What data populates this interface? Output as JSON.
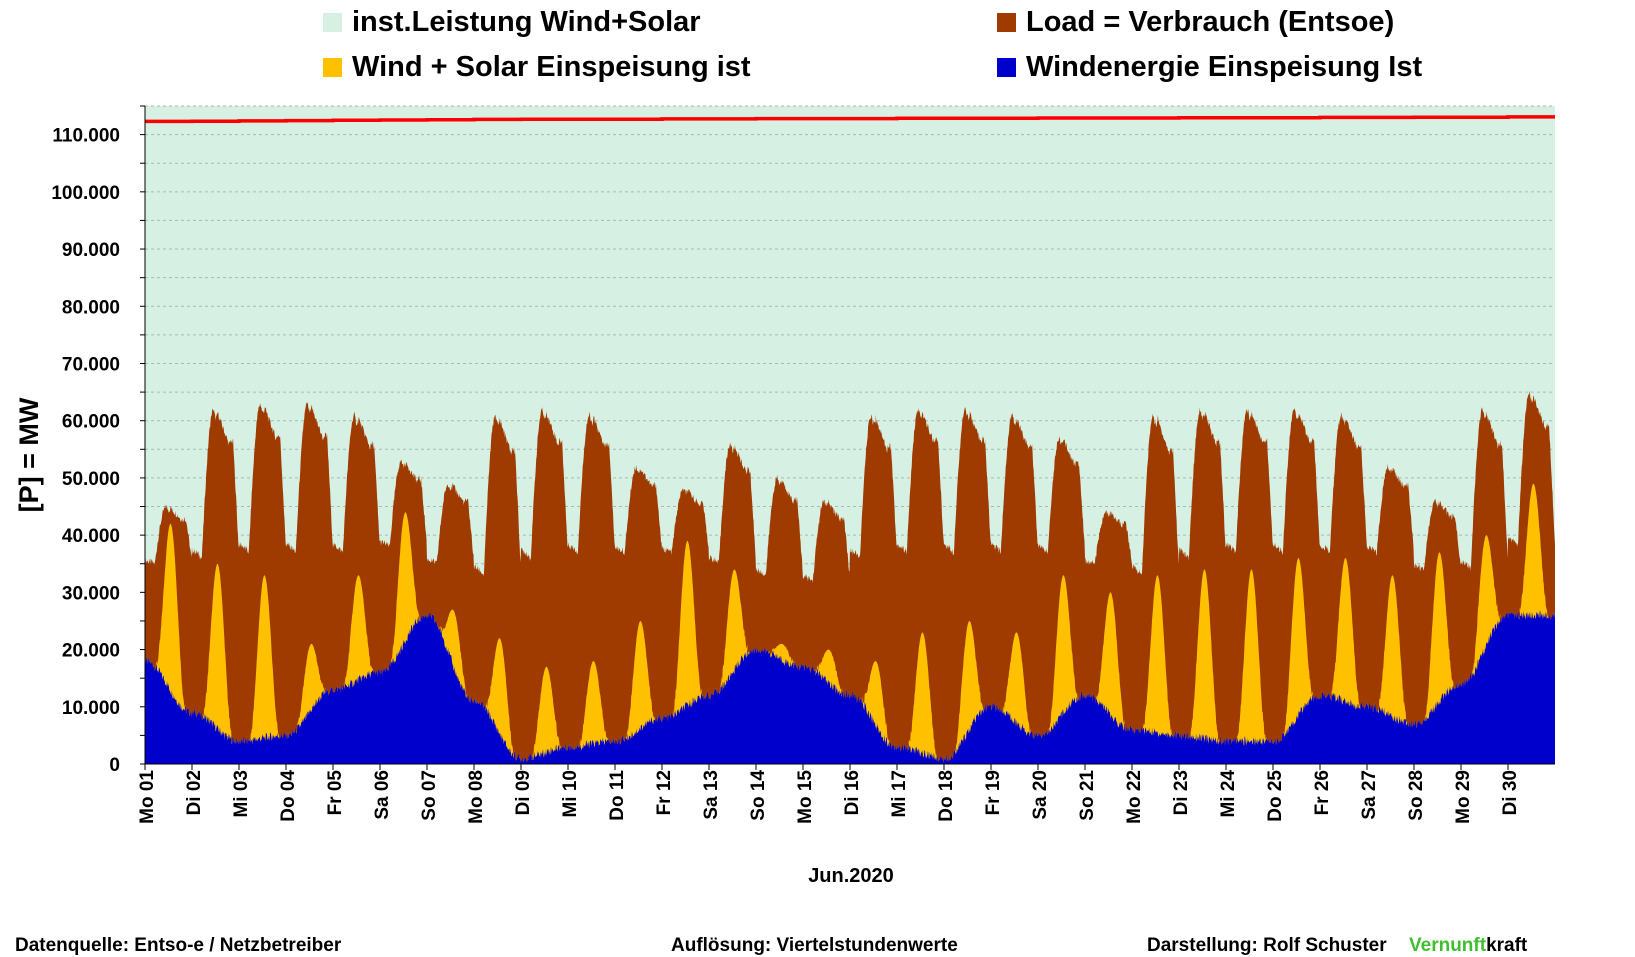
{
  "legend": [
    {
      "label": "inst.Leistung Wind+Solar",
      "color": "#d6f1e3"
    },
    {
      "label": "Load =  Verbrauch (Entsoe)",
      "color": "#a03b00"
    },
    {
      "label": "Wind + Solar Einspeisung ist",
      "color": "#ffc000"
    },
    {
      "label": "Windenergie Einspeisung Ist",
      "color": "#0000cc"
    }
  ],
  "footer": {
    "source": "Datenquelle:  Entso-e  / Netzbetreiber",
    "resolution": "Auflösung: Viertelstundenwerte",
    "author": "Darstellung:  Rolf Schuster",
    "brand_green": "Vernunft",
    "brand_black": "kraft"
  },
  "chart_data": {
    "type": "area",
    "title": "",
    "xlabel": "Jun.2020",
    "ylabel": "[P] = MW",
    "ylim": [
      0,
      115000
    ],
    "yticks": [
      0,
      10000,
      20000,
      30000,
      40000,
      50000,
      60000,
      70000,
      80000,
      90000,
      100000,
      110000
    ],
    "ytick_labels": [
      "0",
      "10.000",
      "20.000",
      "30.000",
      "40.000",
      "50.000",
      "60.000",
      "70.000",
      "80.000",
      "90.000",
      "100.000",
      "110.000"
    ],
    "grid": "horizontal dashed",
    "legend_position": "top",
    "x_tick_labels": [
      "Mo 01",
      "Di 02",
      "Mi 03",
      "Do 04",
      "Fr 05",
      "Sa 06",
      "So 07",
      "Mo 08",
      "Di 09",
      "Mi 10",
      "Do 11",
      "Fr 12",
      "Sa 13",
      "So 14",
      "Mo 15",
      "Di 16",
      "Mi 17",
      "Do 18",
      "Fr 19",
      "Sa 20",
      "So 21",
      "Mo 22",
      "Di 23",
      "Mi 24",
      "Do 25",
      "Fr 26",
      "Sa 27",
      "So 28",
      "Mo 29",
      "Di 30"
    ],
    "days": [
      1,
      2,
      3,
      4,
      5,
      6,
      7,
      8,
      9,
      10,
      11,
      12,
      13,
      14,
      15,
      16,
      17,
      18,
      19,
      20,
      21,
      22,
      23,
      24,
      25,
      26,
      27,
      28,
      29,
      30
    ],
    "installed_capacity_mw": [
      112300,
      112350,
      112400,
      112450,
      112500,
      112550,
      112600,
      112650,
      112700,
      112700,
      112700,
      112750,
      112750,
      112800,
      112800,
      112800,
      112850,
      112850,
      112850,
      112900,
      112900,
      112900,
      112950,
      112950,
      112950,
      113000,
      113000,
      113050,
      113050,
      113100
    ],
    "series": [
      {
        "name": "Load =  Verbrauch (Entsoe)",
        "color": "#a03b00",
        "daily_peak_mw": [
          45000,
          62000,
          63000,
          63000,
          61000,
          53000,
          49000,
          61000,
          62000,
          61000,
          52000,
          48000,
          56000,
          50000,
          46000,
          61000,
          62000,
          62000,
          61000,
          57000,
          44000,
          61000,
          62000,
          62000,
          62000,
          61000,
          52000,
          46000,
          62000,
          65000
        ],
        "daily_night_min_mw": [
          35000,
          36000,
          37000,
          37000,
          37000,
          38000,
          35000,
          33000,
          36000,
          37000,
          37000,
          37000,
          35000,
          33000,
          32000,
          36000,
          37000,
          37000,
          37000,
          37000,
          35000,
          33000,
          36000,
          37000,
          37000,
          37000,
          37000,
          34000,
          34000,
          38000
        ]
      },
      {
        "name": "Wind + Solar Einspeisung ist",
        "color": "#ffc000",
        "daily_peak_mw": [
          42000,
          35000,
          33000,
          21000,
          33000,
          44000,
          27000,
          22000,
          17000,
          18000,
          25000,
          39000,
          34000,
          21000,
          20000,
          18000,
          23000,
          25000,
          23000,
          33000,
          30000,
          33000,
          34000,
          34000,
          36000,
          36000,
          33000,
          37000,
          40000,
          49000
        ]
      },
      {
        "name": "Windenergie Einspeisung Ist",
        "color": "#0000cc",
        "daily_night_mw": [
          18000,
          9000,
          4000,
          5000,
          13000,
          16000,
          26000,
          11000,
          1000,
          3000,
          4000,
          8000,
          12000,
          20000,
          17000,
          12000,
          3000,
          1000,
          10000,
          5000,
          12000,
          6000,
          5000,
          4000,
          4000,
          12000,
          10000,
          7000,
          14000,
          26000
        ]
      }
    ]
  }
}
